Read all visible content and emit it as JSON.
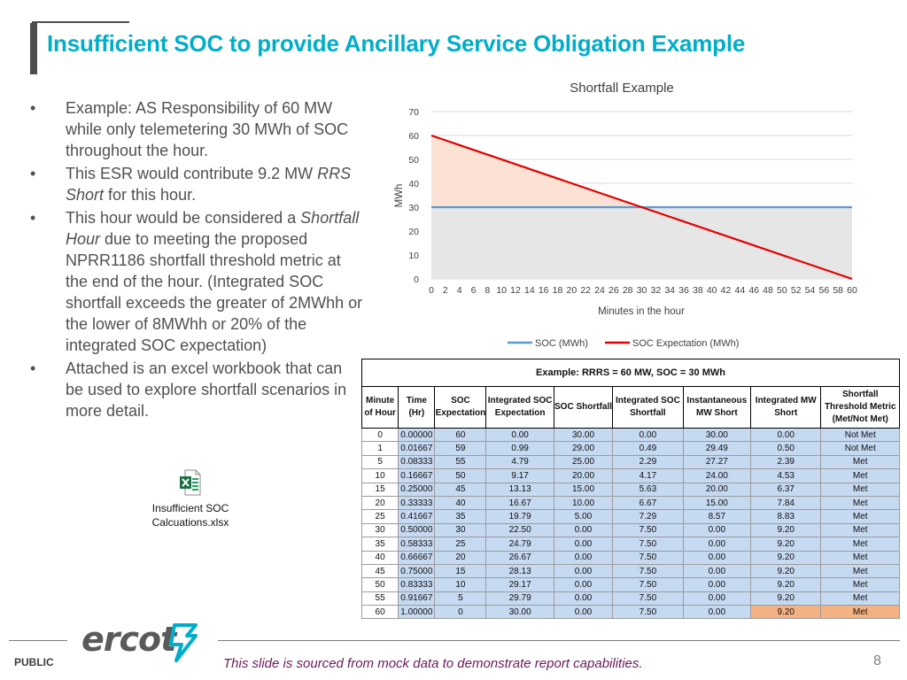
{
  "title": "Insufficient SOC to provide Ancillary Service Obligation Example",
  "bullets": [
    {
      "text": "Example: AS Responsibility of 60 MW while only telemetering 30 MWh of SOC throughout the hour."
    },
    {
      "pre": "This ESR would contribute 9.2 MW ",
      "em": "RRS Short",
      "post": " for this hour."
    },
    {
      "pre": "This hour would be considered a ",
      "em": "Shortfall Hour",
      "post": " due to meeting the proposed NPRR1186 shortfall threshold metric at the end of the hour. (Integrated SOC shortfall exceeds the greater of 2MWhh or the lower of 8MWhh or 20% of the integrated SOC expectation)"
    },
    {
      "text": "Attached is an excel workbook that can be used to explore shortfall scenarios in more detail."
    }
  ],
  "attachment": {
    "line1": "Insufficient SOC",
    "line2": "Calcuations.xlsx",
    "icon": "excel-file-icon"
  },
  "chart_data": {
    "type": "line",
    "title": "Shortfall Example",
    "xlabel": "Minutes in the hour",
    "ylabel": "MWh",
    "xlim": [
      0,
      60
    ],
    "ylim": [
      0,
      70
    ],
    "x_ticks": [
      0,
      2,
      4,
      6,
      8,
      10,
      12,
      14,
      16,
      18,
      20,
      22,
      24,
      26,
      28,
      30,
      32,
      34,
      36,
      38,
      40,
      42,
      44,
      46,
      48,
      50,
      52,
      54,
      56,
      58,
      60
    ],
    "y_ticks": [
      0,
      10,
      20,
      30,
      40,
      50,
      60,
      70
    ],
    "grid": true,
    "legend_position": "bottom",
    "series": [
      {
        "name": "SOC (MWh)",
        "color": "#5b9bd5",
        "x": [
          0,
          60
        ],
        "y": [
          30,
          30
        ]
      },
      {
        "name": "SOC Expectation (MWh)",
        "color": "#e30000",
        "x": [
          0,
          60
        ],
        "y": [
          60,
          0
        ]
      }
    ],
    "fills": {
      "shortfall": "#fbe2d5",
      "soc": "#e6e6e6"
    }
  },
  "table": {
    "caption": "Example: RRRS = 60 MW, SOC = 30 MWh",
    "headers": [
      [
        "Minute",
        "of Hour"
      ],
      [
        "Time",
        "(Hr)"
      ],
      [
        "SOC",
        "Expectation"
      ],
      [
        "Integrated SOC",
        "Expectation"
      ],
      [
        "SOC Shortfall"
      ],
      [
        "Integrated SOC",
        "Shortfall"
      ],
      [
        "Instantaneous",
        "MW Short"
      ],
      [
        "Integrated MW",
        "Short"
      ],
      [
        "Shortfall",
        "Threshold Metric",
        "(Met/Not Met)"
      ]
    ],
    "rows": [
      [
        "0",
        "0.00000",
        "60",
        "0.00",
        "30.00",
        "0.00",
        "30.00",
        "0.00",
        "Not Met"
      ],
      [
        "1",
        "0.01667",
        "59",
        "0.99",
        "29.00",
        "0.49",
        "29.49",
        "0.50",
        "Not Met"
      ],
      [
        "5",
        "0.08333",
        "55",
        "4.79",
        "25.00",
        "2.29",
        "27.27",
        "2.39",
        "Met"
      ],
      [
        "10",
        "0.16667",
        "50",
        "9.17",
        "20.00",
        "4.17",
        "24.00",
        "4.53",
        "Met"
      ],
      [
        "15",
        "0.25000",
        "45",
        "13.13",
        "15.00",
        "5.63",
        "20.00",
        "6.37",
        "Met"
      ],
      [
        "20",
        "0.33333",
        "40",
        "16.67",
        "10.00",
        "6.67",
        "15.00",
        "7.84",
        "Met"
      ],
      [
        "25",
        "0.41667",
        "35",
        "19.79",
        "5.00",
        "7.29",
        "8.57",
        "8.83",
        "Met"
      ],
      [
        "30",
        "0.50000",
        "30",
        "22.50",
        "0.00",
        "7.50",
        "0.00",
        "9.20",
        "Met"
      ],
      [
        "35",
        "0.58333",
        "25",
        "24.79",
        "0.00",
        "7.50",
        "0.00",
        "9.20",
        "Met"
      ],
      [
        "40",
        "0.66667",
        "20",
        "26.67",
        "0.00",
        "7.50",
        "0.00",
        "9.20",
        "Met"
      ],
      [
        "45",
        "0.75000",
        "15",
        "28.13",
        "0.00",
        "7.50",
        "0.00",
        "9.20",
        "Met"
      ],
      [
        "50",
        "0.83333",
        "10",
        "29.17",
        "0.00",
        "7.50",
        "0.00",
        "9.20",
        "Met"
      ],
      [
        "55",
        "0.91667",
        "5",
        "29.79",
        "0.00",
        "7.50",
        "0.00",
        "9.20",
        "Met"
      ],
      [
        "60",
        "1.00000",
        "0",
        "30.00",
        "0.00",
        "7.50",
        "0.00",
        "9.20",
        "Met"
      ]
    ],
    "colors": {
      "blue": "#c5d9f1",
      "highlight": "#f4b183"
    }
  },
  "footer": {
    "brand": "ercot",
    "brand_icon": "ercot-logo-icon",
    "classification": "PUBLIC",
    "disclaimer": "This slide is sourced from mock data to demonstrate report capabilities.",
    "page_number": "8"
  }
}
